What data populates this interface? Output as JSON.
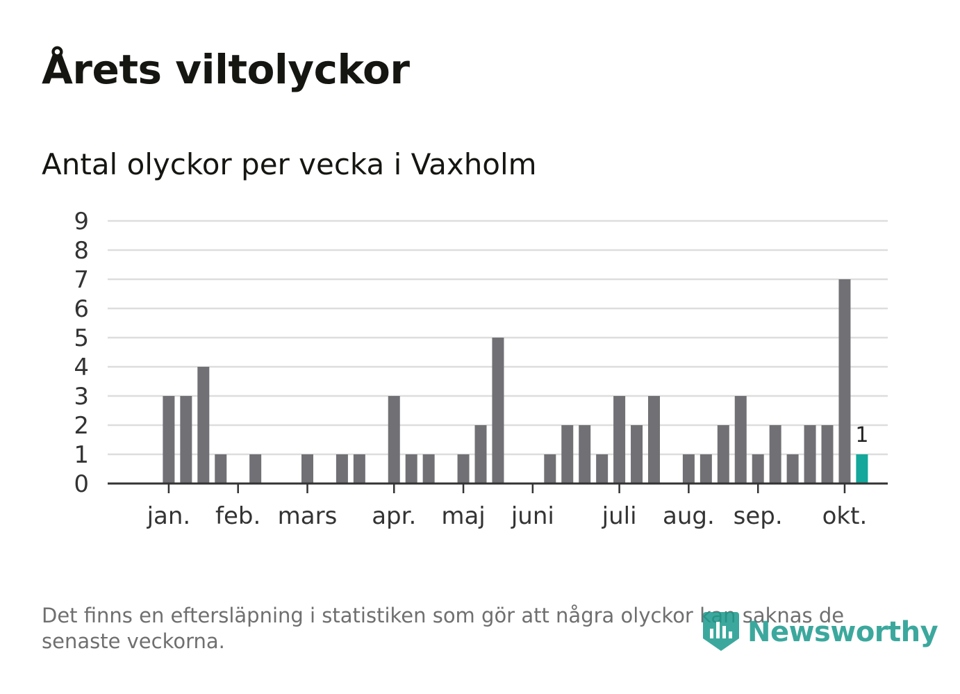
{
  "header": {
    "title": "Årets viltolyckor",
    "subtitle": "Antal olyckor per vecka i Vaxholm"
  },
  "footer": {
    "note": "Det finns en eftersläpning i statistiken som gör att några olyckor kan saknas de senaste veckorna.",
    "brand": "Newsworthy"
  },
  "colors": {
    "bar": "#717075",
    "highlight": "#13a89b",
    "grid": "#dddddd",
    "axis": "#333333",
    "text": "#1a1a1a"
  },
  "chart_data": {
    "type": "bar",
    "title": "Antal olyckor per vecka i Vaxholm",
    "xlabel": "",
    "ylabel": "",
    "ylim": [
      0,
      9
    ],
    "yticks": [
      0,
      1,
      2,
      3,
      4,
      5,
      6,
      7,
      8,
      9
    ],
    "grid": true,
    "weeks": [
      1,
      2,
      3,
      4,
      5,
      6,
      7,
      8,
      9,
      10,
      11,
      12,
      13,
      14,
      15,
      16,
      17,
      18,
      19,
      20,
      21,
      22,
      23,
      24,
      25,
      26,
      27,
      28,
      29,
      30,
      31,
      32,
      33,
      34,
      35,
      36,
      37,
      38,
      39,
      40,
      41,
      42,
      43,
      44
    ],
    "values": [
      0,
      0,
      3,
      3,
      4,
      1,
      0,
      1,
      0,
      0,
      1,
      0,
      1,
      1,
      0,
      3,
      1,
      1,
      0,
      1,
      2,
      5,
      0,
      0,
      1,
      2,
      2,
      1,
      3,
      2,
      3,
      0,
      1,
      1,
      2,
      3,
      1,
      2,
      1,
      2,
      2,
      7,
      1,
      0
    ],
    "highlight_index": 42,
    "highlight_label": "1",
    "month_ticks": [
      {
        "label": "jan.",
        "week": 3
      },
      {
        "label": "feb.",
        "week": 7
      },
      {
        "label": "mars",
        "week": 11
      },
      {
        "label": "apr.",
        "week": 16
      },
      {
        "label": "maj",
        "week": 20
      },
      {
        "label": "juni",
        "week": 24
      },
      {
        "label": "juli",
        "week": 29
      },
      {
        "label": "aug.",
        "week": 33
      },
      {
        "label": "sep.",
        "week": 37
      },
      {
        "label": "okt.",
        "week": 42
      }
    ]
  }
}
